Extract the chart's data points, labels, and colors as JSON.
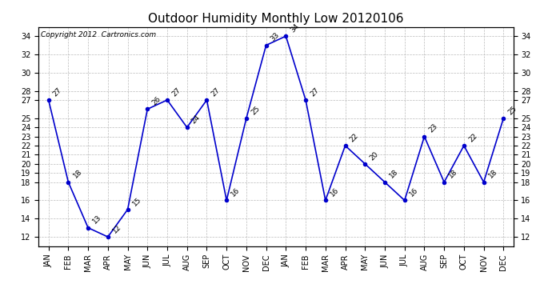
{
  "title": "Outdoor Humidity Monthly Low 20120106",
  "copyright": "Copyright 2012  Cartronics.com",
  "months": [
    "JAN",
    "FEB",
    "MAR",
    "APR",
    "MAY",
    "JUN",
    "JUL",
    "AUG",
    "SEP",
    "OCT",
    "NOV",
    "DEC",
    "JAN",
    "FEB",
    "MAR",
    "APR",
    "MAY",
    "JUN",
    "JUL",
    "AUG",
    "SEP",
    "OCT",
    "NOV",
    "DEC"
  ],
  "values": [
    27,
    18,
    13,
    12,
    15,
    26,
    27,
    24,
    27,
    16,
    25,
    33,
    34,
    27,
    16,
    22,
    20,
    18,
    16,
    23,
    18,
    22,
    18,
    25
  ],
  "line_color": "#0000CC",
  "marker_size": 3,
  "ylim": [
    11.0,
    35.0
  ],
  "yticks": [
    12,
    14,
    16,
    18,
    19,
    20,
    21,
    22,
    23,
    24,
    25,
    27,
    28,
    30,
    32,
    34
  ],
  "bg_color": "#ffffff",
  "grid_color": "#bbbbbb",
  "title_fontsize": 11,
  "tick_fontsize": 7,
  "copyright_fontsize": 6.5,
  "annot_fontsize": 6.5
}
